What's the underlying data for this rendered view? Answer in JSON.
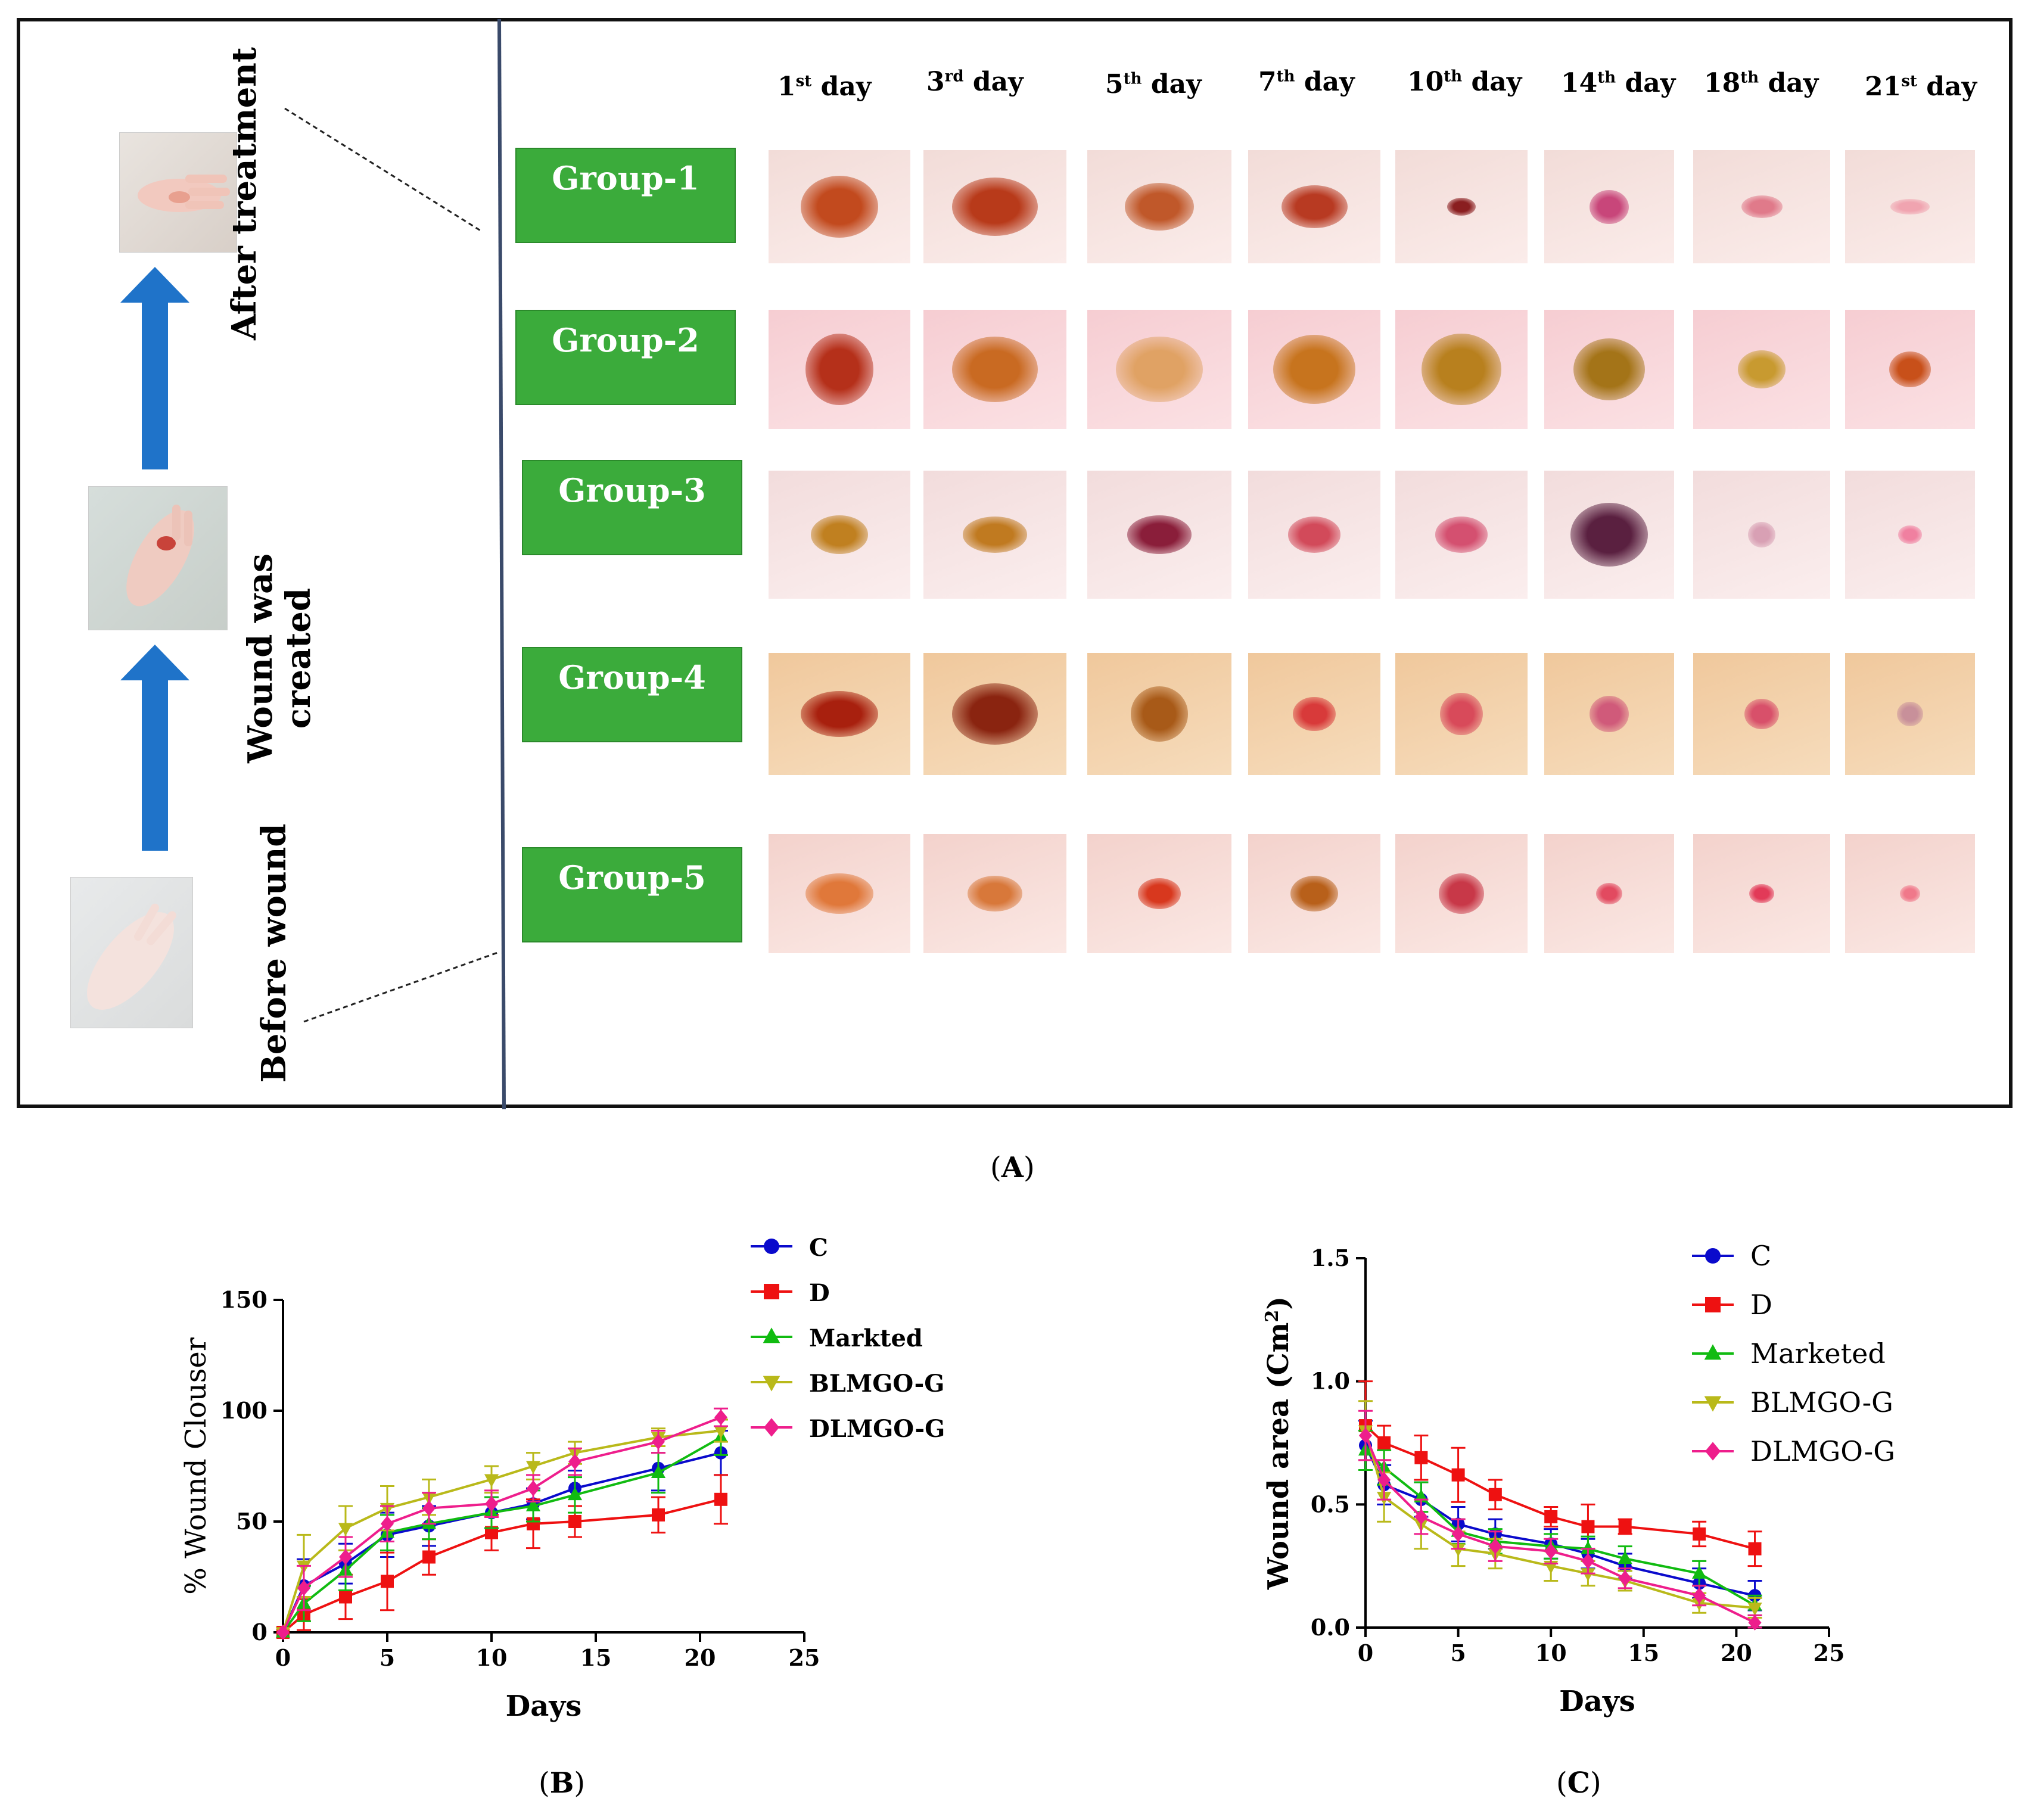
{
  "panel_a": {
    "stages": {
      "after": "After treatment",
      "created_line1": "Wound was",
      "created_line2": "created",
      "before": "Before wound"
    },
    "days": [
      {
        "num": "1",
        "sup": "st",
        "txt": " day"
      },
      {
        "num": "3",
        "sup": "rd",
        "txt": " day"
      },
      {
        "num": "5",
        "sup": "th",
        "txt": " day"
      },
      {
        "num": "7",
        "sup": "th",
        "txt": " day"
      },
      {
        "num": "10",
        "sup": "th",
        "txt": " day"
      },
      {
        "num": "14",
        "sup": "th",
        "txt": " day"
      },
      {
        "num": "18",
        "sup": "th",
        "txt": " day"
      },
      {
        "num": "21",
        "sup": "st",
        "txt": " day"
      }
    ],
    "groups": [
      "Group-1",
      "Group-2",
      "Group-3",
      "Group-4",
      "Group-5"
    ],
    "arrow_color": "#1f73c9",
    "group_color": "#3bab3b"
  },
  "captions": {
    "a": "A",
    "b": "B",
    "c": "C"
  },
  "chart_data": [
    {
      "type": "line",
      "id": "B",
      "xlabel": "Days",
      "ylabel": "% Wound Clouser",
      "xlim": [
        0,
        25
      ],
      "ylim": [
        0,
        150
      ],
      "xticks": [
        0,
        5,
        10,
        15,
        20,
        25
      ],
      "yticks": [
        0,
        50,
        100,
        150
      ],
      "legend_position": "top-right",
      "x": [
        0,
        1,
        3,
        5,
        7,
        10,
        12,
        14,
        18,
        21
      ],
      "series": [
        {
          "name": "C",
          "color": "#0a0acc",
          "marker": "circle",
          "values": [
            0,
            21,
            31,
            44,
            48,
            54,
            58,
            65,
            74,
            81
          ],
          "errors": [
            0,
            12,
            9,
            10,
            9,
            7,
            7,
            8,
            10,
            10
          ]
        },
        {
          "name": "D",
          "color": "#ee1111",
          "marker": "square",
          "values": [
            0,
            8,
            16,
            23,
            34,
            45,
            49,
            50,
            53,
            60
          ],
          "errors": [
            0,
            7,
            10,
            13,
            8,
            8,
            11,
            7,
            8,
            11
          ]
        },
        {
          "name": "Markted",
          "color": "#11bb11",
          "marker": "triangle-up",
          "values": [
            0,
            13,
            28,
            45,
            49,
            54,
            57,
            62,
            72,
            88
          ],
          "errors": [
            0,
            8,
            9,
            8,
            7,
            7,
            7,
            8,
            9,
            8
          ]
        },
        {
          "name": "BLMGO-G",
          "color": "#b9b91a",
          "marker": "triangle-down",
          "values": [
            0,
            30,
            47,
            56,
            61,
            69,
            75,
            81,
            88,
            91
          ],
          "errors": [
            0,
            14,
            10,
            10,
            8,
            6,
            6,
            5,
            4,
            5
          ]
        },
        {
          "name": "DLMGO-G",
          "color": "#ee1e8c",
          "marker": "diamond",
          "values": [
            0,
            20,
            34,
            49,
            56,
            58,
            65,
            77,
            86,
            97
          ],
          "errors": [
            0,
            10,
            9,
            8,
            7,
            6,
            6,
            6,
            5,
            4
          ]
        }
      ]
    },
    {
      "type": "line",
      "id": "C",
      "xlabel": "Days",
      "ylabel": "Wound area  (Cm",
      "ylabel_sup": "2",
      "ylabel_close": ")",
      "xlim": [
        0,
        25
      ],
      "ylim": [
        0,
        1.5
      ],
      "xticks": [
        0,
        5,
        10,
        15,
        20,
        25
      ],
      "yticks": [
        "0.0",
        "0.5",
        "1.0",
        "1.5"
      ],
      "legend_position": "top-right",
      "x": [
        0,
        1,
        3,
        5,
        7,
        10,
        12,
        14,
        18,
        21
      ],
      "series": [
        {
          "name": "C",
          "color": "#0a0acc",
          "marker": "circle",
          "values": [
            0.74,
            0.58,
            0.52,
            0.42,
            0.38,
            0.34,
            0.3,
            0.25,
            0.18,
            0.13
          ],
          "errors": [
            0.1,
            0.08,
            0.07,
            0.07,
            0.06,
            0.06,
            0.06,
            0.05,
            0.06,
            0.06
          ]
        },
        {
          "name": "D",
          "color": "#ee1111",
          "marker": "square",
          "values": [
            0.82,
            0.75,
            0.69,
            0.62,
            0.54,
            0.45,
            0.41,
            0.41,
            0.38,
            0.32
          ],
          "errors": [
            0.18,
            0.07,
            0.09,
            0.11,
            0.06,
            0.04,
            0.09,
            0.03,
            0.05,
            0.07
          ]
        },
        {
          "name": "Marketed",
          "color": "#11bb11",
          "marker": "triangle-up",
          "values": [
            0.72,
            0.65,
            0.53,
            0.39,
            0.35,
            0.33,
            0.32,
            0.28,
            0.22,
            0.09
          ],
          "errors": [
            0.08,
            0.07,
            0.06,
            0.05,
            0.05,
            0.05,
            0.05,
            0.05,
            0.05,
            0.04
          ]
        },
        {
          "name": "BLMGO-G",
          "color": "#b9b91a",
          "marker": "triangle-down",
          "values": [
            0.8,
            0.53,
            0.42,
            0.32,
            0.3,
            0.25,
            0.22,
            0.19,
            0.1,
            0.08
          ],
          "errors": [
            0.12,
            0.1,
            0.1,
            0.07,
            0.06,
            0.06,
            0.05,
            0.04,
            0.04,
            0.04
          ]
        },
        {
          "name": "DLMGO-G",
          "color": "#ee1e8c",
          "marker": "diamond",
          "values": [
            0.78,
            0.6,
            0.45,
            0.38,
            0.33,
            0.31,
            0.27,
            0.2,
            0.13,
            0.02
          ],
          "errors": [
            0.1,
            0.08,
            0.07,
            0.06,
            0.06,
            0.05,
            0.05,
            0.04,
            0.04,
            0.03
          ]
        }
      ]
    }
  ]
}
